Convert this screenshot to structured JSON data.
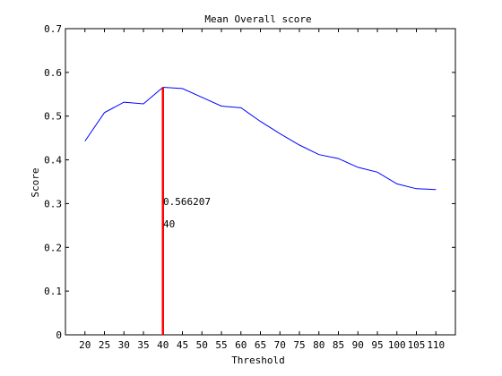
{
  "chart_data": {
    "type": "line",
    "title": "Mean Overall score",
    "xlabel": "Threshold",
    "ylabel": "Score",
    "xlim": [
      15,
      115
    ],
    "ylim": [
      0,
      0.7
    ],
    "xticks": [
      20,
      25,
      30,
      35,
      40,
      45,
      50,
      55,
      60,
      65,
      70,
      75,
      80,
      85,
      90,
      95,
      100,
      105,
      110
    ],
    "yticks": [
      0,
      0.1,
      0.2,
      0.3,
      0.4,
      0.5,
      0.6,
      0.7
    ],
    "grid": false,
    "series": [
      {
        "color": "#0000ff",
        "x": [
          20,
          25,
          30,
          35,
          40,
          45,
          50,
          55,
          60,
          65,
          70,
          75,
          80,
          85,
          90,
          95,
          100,
          105,
          110
        ],
        "y": [
          0.443,
          0.508,
          0.532,
          0.528,
          0.566,
          0.563,
          0.543,
          0.523,
          0.519,
          0.488,
          0.46,
          0.434,
          0.412,
          0.403,
          0.383,
          0.372,
          0.345,
          0.334,
          0.332
        ]
      }
    ],
    "marker_line": {
      "x": 40,
      "color": "#ff0000"
    },
    "annotations": {
      "value_text": "0.566207",
      "x_text": "40"
    }
  }
}
